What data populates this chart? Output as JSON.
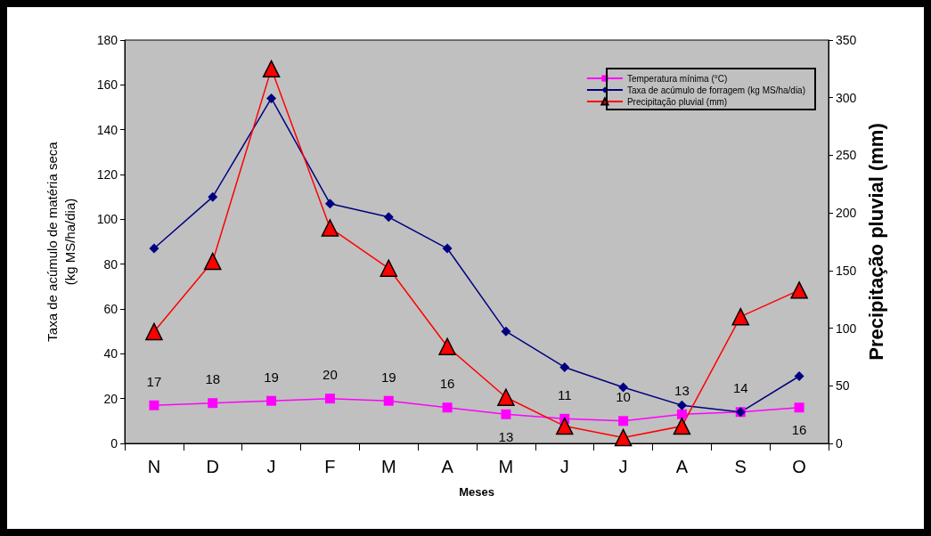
{
  "chart_data": {
    "type": "line",
    "xlabel": "Meses",
    "ylabel": "Taxa de acúmulo de matéria seca\n(kg MS/ha/dia)",
    "y2label": "Precipitação pluvial (mm)",
    "categories": [
      "N",
      "D",
      "J",
      "F",
      "M",
      "A",
      "M",
      "J",
      "J",
      "A",
      "S",
      "O"
    ],
    "series": [
      {
        "name": "Temperatura mínima (°C)",
        "color": "#ff00ff",
        "marker": "square",
        "data_labels": true,
        "values": [
          17,
          18,
          19,
          20,
          19,
          16,
          13,
          11,
          10,
          13,
          14,
          16
        ]
      },
      {
        "name": "Taxa de acúmulo de forragem (kg MS/ha/dia)",
        "color": "#000080",
        "marker": "diamond",
        "values": [
          87,
          110,
          154,
          107,
          101,
          87,
          50,
          34,
          25,
          17,
          14,
          30
        ]
      },
      {
        "name": "Precipitação pluvial (mm)",
        "color": "#ff0000",
        "marker": "triangle",
        "axis": "y2",
        "values": [
          97,
          158,
          325,
          187,
          152,
          84,
          40,
          15,
          5,
          15,
          110,
          133
        ]
      }
    ],
    "ylim": [
      0,
      180
    ],
    "yticks": [
      0,
      20,
      40,
      60,
      80,
      100,
      120,
      140,
      160,
      180
    ],
    "y2lim": [
      0,
      350
    ],
    "y2ticks": [
      0,
      50,
      100,
      150,
      200,
      250,
      300,
      350
    ],
    "grid": false,
    "legend": "top right"
  }
}
